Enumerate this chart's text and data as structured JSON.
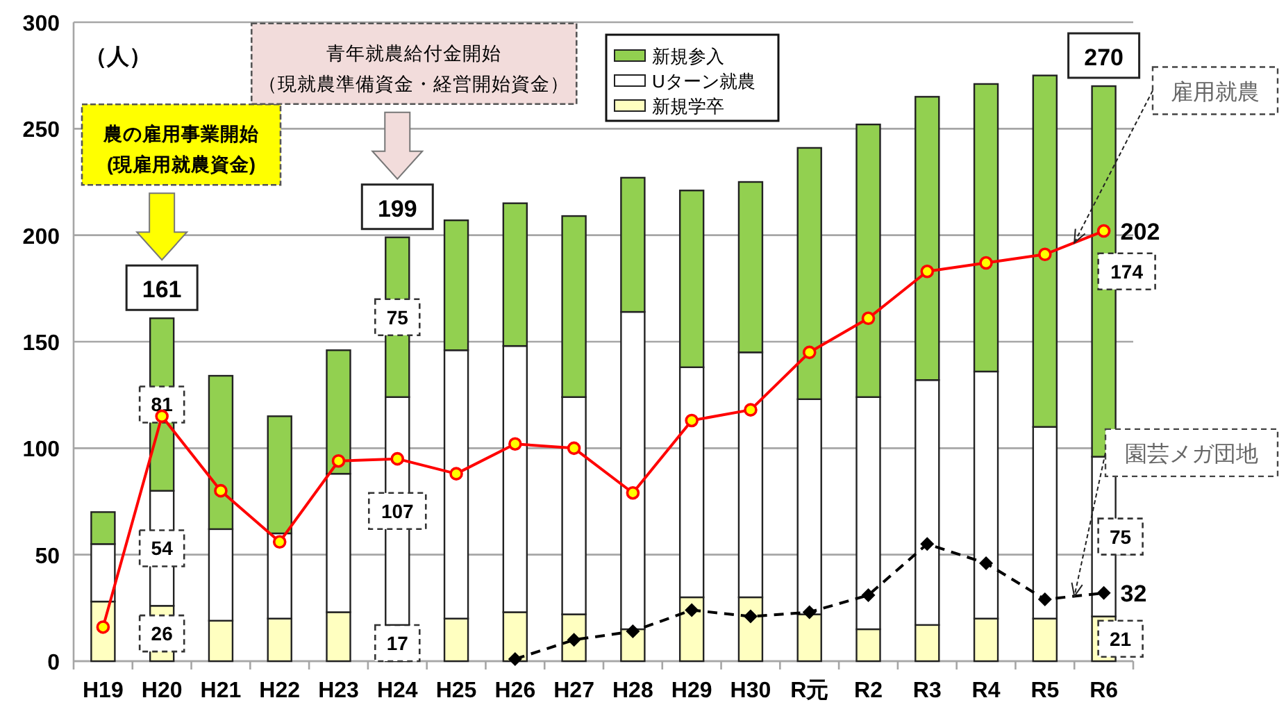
{
  "chart_data": {
    "type": "bar",
    "stacked": true,
    "ylabel": "（人）",
    "categories": [
      "H19",
      "H20",
      "H21",
      "H22",
      "H23",
      "H24",
      "H25",
      "H26",
      "H27",
      "H28",
      "H29",
      "H30",
      "R元",
      "R2",
      "R3",
      "R4",
      "R5",
      "R6"
    ],
    "ylim": [
      0,
      300
    ],
    "yticks": [
      0,
      50,
      100,
      150,
      200,
      250,
      300
    ],
    "grid": "y",
    "legend": "top",
    "series": [
      {
        "name": "新規学卒",
        "type": "bar",
        "color": "#ffffc0",
        "values": [
          28,
          26,
          19,
          20,
          23,
          17,
          20,
          23,
          22,
          15,
          30,
          30,
          22,
          15,
          17,
          20,
          20,
          21
        ],
        "value_labels": [
          null,
          "26",
          null,
          null,
          null,
          "17",
          null,
          null,
          null,
          null,
          null,
          null,
          null,
          null,
          null,
          null,
          null,
          "21"
        ]
      },
      {
        "name": "Uターン就農",
        "type": "bar",
        "color": "#ffffff",
        "values": [
          27,
          54,
          43,
          40,
          65,
          107,
          126,
          125,
          102,
          149,
          108,
          115,
          101,
          109,
          115,
          116,
          90,
          75
        ],
        "value_labels": [
          null,
          "54",
          null,
          null,
          null,
          "107",
          null,
          null,
          null,
          null,
          null,
          null,
          null,
          null,
          null,
          null,
          null,
          "75"
        ]
      },
      {
        "name": "新規参入",
        "type": "bar",
        "color": "#92d050",
        "values": [
          15,
          81,
          72,
          55,
          58,
          75,
          61,
          67,
          85,
          63,
          83,
          80,
          118,
          128,
          133,
          135,
          165,
          174
        ],
        "value_labels": [
          null,
          "81",
          null,
          null,
          null,
          "75",
          null,
          null,
          null,
          null,
          null,
          null,
          null,
          null,
          null,
          null,
          null,
          "174"
        ]
      },
      {
        "name": "雇用就農",
        "type": "line",
        "color": "#ff0000",
        "marker": "circle",
        "values": [
          16,
          115,
          80,
          56,
          94,
          95,
          88,
          102,
          100,
          79,
          113,
          118,
          145,
          161,
          183,
          187,
          191,
          202
        ],
        "value_labels": [
          null,
          null,
          null,
          null,
          null,
          null,
          null,
          null,
          null,
          null,
          null,
          null,
          null,
          null,
          null,
          null,
          null,
          "202"
        ]
      },
      {
        "name": "園芸メガ団地",
        "type": "line",
        "color": "#000000",
        "marker": "diamond",
        "line_style": "dashed",
        "values": [
          null,
          null,
          null,
          null,
          null,
          null,
          null,
          1,
          10,
          14,
          24,
          21,
          23,
          31,
          55,
          46,
          29,
          32
        ],
        "value_labels": [
          null,
          null,
          null,
          null,
          null,
          null,
          null,
          null,
          null,
          null,
          null,
          null,
          null,
          null,
          null,
          null,
          null,
          "32"
        ]
      }
    ],
    "totals": [
      null,
      "161",
      null,
      null,
      null,
      "199",
      null,
      null,
      null,
      null,
      null,
      null,
      null,
      null,
      null,
      null,
      null,
      "270"
    ],
    "annotations": [
      "農の雇用事業開始(現雇用就農資金)",
      "青年就農給付金開始（現就農準備資金・経営開始資金）"
    ]
  }
}
